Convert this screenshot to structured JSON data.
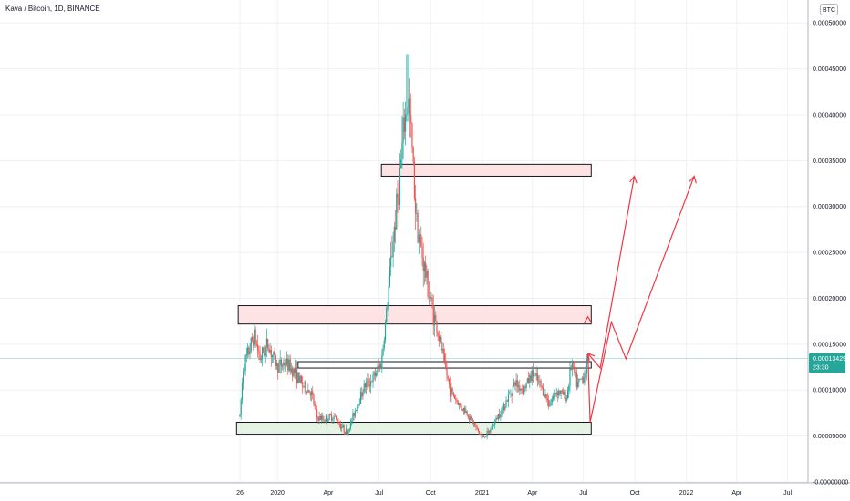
{
  "header": {
    "title": "Kava / Bitcoin, 1D, BINANCE",
    "currency": "BTC"
  },
  "price_label": {
    "value": "0.00013429",
    "countdown": "23:30"
  },
  "colors": {
    "up": "#26a69a",
    "down": "#ef5350",
    "resistance_fill": "#fde0e0",
    "support_fill": "#e2f2e2",
    "arrows": "#f23645",
    "grid": "#eef0f4",
    "last_price_line": "#26a69a"
  },
  "chart_data": {
    "type": "candlestick",
    "title": "Kava / Bitcoin, 1D, BINANCE",
    "ylim": [
      -1e-06,
      0.000525
    ],
    "y_ticks": [
      0.0,
      5e-05,
      0.0001,
      0.00015,
      0.0002,
      0.00025,
      0.0003,
      0.00035,
      0.0004,
      0.00045,
      0.0005
    ],
    "y_tick_labels": [
      "-0.00000000",
      "0.00005000",
      "0.00010000",
      "0.00015000",
      "0.00020000",
      "0.00025000",
      "0.00030000",
      "0.00035000",
      "0.00040000",
      "0.00045000",
      "0.00050000"
    ],
    "x_ticks": [
      {
        "label": "26",
        "date": "2019-10-26"
      },
      {
        "label": "2020",
        "date": "2020-01-01"
      },
      {
        "label": "Apr",
        "date": "2020-04-01"
      },
      {
        "label": "Jul",
        "date": "2020-07-01"
      },
      {
        "label": "Oct",
        "date": "2020-10-01"
      },
      {
        "label": "2021",
        "date": "2021-01-01"
      },
      {
        "label": "Apr",
        "date": "2021-04-01"
      },
      {
        "label": "Jul",
        "date": "2021-07-01"
      },
      {
        "label": "Oct",
        "date": "2021-10-01"
      },
      {
        "label": "2022",
        "date": "2022-01-01"
      },
      {
        "label": "Apr",
        "date": "2022-04-01"
      },
      {
        "label": "Jul",
        "date": "2022-07-01"
      }
    ],
    "last_price": 0.00013429,
    "price_path": [
      [
        "2019-10-26",
        7.1e-05
      ],
      [
        "2019-11-01",
        0.000125
      ],
      [
        "2019-11-10",
        0.00014
      ],
      [
        "2019-11-20",
        0.00016
      ],
      [
        "2019-12-01",
        0.000135
      ],
      [
        "2019-12-15",
        0.00015
      ],
      [
        "2020-01-01",
        0.000125
      ],
      [
        "2020-01-15",
        0.00013
      ],
      [
        "2020-02-01",
        0.00012
      ],
      [
        "2020-02-15",
        0.000105
      ],
      [
        "2020-03-01",
        9.8e-05
      ],
      [
        "2020-03-12",
        7e-05
      ],
      [
        "2020-03-25",
        6.8e-05
      ],
      [
        "2020-04-10",
        7.2e-05
      ],
      [
        "2020-04-25",
        6e-05
      ],
      [
        "2020-05-05",
        5.3e-05
      ],
      [
        "2020-05-20",
        8e-05
      ],
      [
        "2020-06-05",
        0.000105
      ],
      [
        "2020-06-20",
        0.000112
      ],
      [
        "2020-07-05",
        0.00013
      ],
      [
        "2020-07-15",
        0.00019
      ],
      [
        "2020-07-25",
        0.00026
      ],
      [
        "2020-08-05",
        0.00032
      ],
      [
        "2020-08-15",
        0.00039
      ],
      [
        "2020-08-22",
        0.00042
      ],
      [
        "2020-08-29",
        0.00036
      ],
      [
        "2020-09-05",
        0.00029
      ],
      [
        "2020-09-15",
        0.00025
      ],
      [
        "2020-09-25",
        0.000215
      ],
      [
        "2020-10-05",
        0.000185
      ],
      [
        "2020-10-15",
        0.00016
      ],
      [
        "2020-10-25",
        0.00013
      ],
      [
        "2020-11-05",
        0.0001
      ],
      [
        "2020-11-20",
        8.5e-05
      ],
      [
        "2020-12-05",
        7.5e-05
      ],
      [
        "2020-12-20",
        6e-05
      ],
      [
        "2021-01-01",
        4.8e-05
      ],
      [
        "2021-01-15",
        5.5e-05
      ],
      [
        "2021-02-01",
        7.5e-05
      ],
      [
        "2021-02-15",
        9e-05
      ],
      [
        "2021-03-01",
        0.000108
      ],
      [
        "2021-03-15",
        0.0001
      ],
      [
        "2021-04-01",
        0.000118
      ],
      [
        "2021-04-15",
        0.000105
      ],
      [
        "2021-05-01",
        8.5e-05
      ],
      [
        "2021-05-15",
        0.0001
      ],
      [
        "2021-06-01",
        9.2e-05
      ],
      [
        "2021-06-10",
        0.00013
      ],
      [
        "2021-06-20",
        0.000105
      ],
      [
        "2021-07-01",
        0.000115
      ],
      [
        "2021-07-10",
        0.000134
      ]
    ],
    "zones": [
      {
        "kind": "resistance",
        "from": "2020-07-05",
        "to": "2021-07-15",
        "low": 0.000333,
        "high": 0.000346
      },
      {
        "kind": "resistance",
        "from": "2019-10-23",
        "to": "2021-07-15",
        "low": 0.000172,
        "high": 0.000192
      },
      {
        "kind": "range",
        "from": "2020-02-07",
        "to": "2021-07-15",
        "low": 0.000124,
        "high": 0.000131
      },
      {
        "kind": "support",
        "from": "2019-10-20",
        "to": "2021-07-15",
        "low": 5.2e-05,
        "high": 6.5e-05
      }
    ],
    "projections": [
      {
        "path": [
          [
            "2021-07-09",
            0.00014
          ],
          [
            "2021-07-31",
            0.000124
          ],
          [
            "2021-09-30",
            0.000333
          ]
        ]
      },
      {
        "path": [
          [
            "2021-07-09",
            0.00014
          ],
          [
            "2021-07-13",
            6.5e-05
          ],
          [
            "2021-08-20",
            0.000174
          ],
          [
            "2021-09-15",
            0.000134
          ],
          [
            "2022-01-15",
            0.000333
          ]
        ]
      }
    ],
    "grid": true
  }
}
